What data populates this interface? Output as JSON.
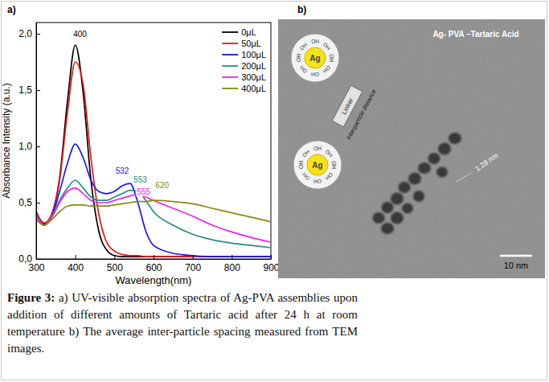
{
  "chart_data": {
    "type": "line",
    "xlabel": "Wavelength(nm)",
    "ylabel": "Absorbance Intensity (a.u.)",
    "x": [
      300,
      320,
      340,
      360,
      380,
      400,
      420,
      440,
      460,
      480,
      500,
      520,
      540,
      560,
      580,
      600,
      650,
      700,
      750,
      800,
      850,
      900
    ],
    "xlim": [
      300,
      900
    ],
    "xticks": [
      300,
      400,
      500,
      600,
      700,
      800,
      900
    ],
    "ylim": [
      0,
      2.1
    ],
    "yticks": [
      {
        "value": 0,
        "label": "0,0"
      },
      {
        "value": 0.5,
        "label": "0,5"
      },
      {
        "value": 1,
        "label": "1,0"
      },
      {
        "value": 1.5,
        "label": "1,5"
      },
      {
        "value": 2,
        "label": "2,0"
      }
    ],
    "grid": false,
    "legend": "upper right",
    "series": [
      {
        "name": "0μL",
        "color": "#000000",
        "values": [
          0.42,
          0.31,
          0.4,
          0.72,
          1.4,
          1.9,
          1.48,
          0.7,
          0.25,
          0.08,
          0.03,
          0.02,
          0.02,
          0.02,
          0.02,
          0.02,
          0.02,
          0.02,
          0.02,
          0.02,
          0.02,
          0.02
        ]
      },
      {
        "name": "50μL",
        "color": "#e8161b",
        "values": [
          0.42,
          0.32,
          0.4,
          0.7,
          1.3,
          1.75,
          1.55,
          0.9,
          0.4,
          0.15,
          0.07,
          0.04,
          0.03,
          0.03,
          0.02,
          0.02,
          0.02,
          0.02,
          0.02,
          0.02,
          0.02,
          0.02
        ]
      },
      {
        "name": "100μL",
        "color": "#1a1ae6",
        "values": [
          0.4,
          0.3,
          0.38,
          0.6,
          0.85,
          1.02,
          0.9,
          0.7,
          0.6,
          0.58,
          0.6,
          0.65,
          0.67,
          0.5,
          0.25,
          0.12,
          0.05,
          0.03,
          0.02,
          0.02,
          0.02,
          0.02
        ]
      },
      {
        "name": "200μL",
        "color": "#2a8c84",
        "values": [
          0.4,
          0.3,
          0.38,
          0.52,
          0.63,
          0.7,
          0.63,
          0.55,
          0.52,
          0.52,
          0.55,
          0.58,
          0.61,
          0.6,
          0.52,
          0.42,
          0.3,
          0.22,
          0.17,
          0.14,
          0.12,
          0.1
        ]
      },
      {
        "name": "300μL",
        "color": "#ee22ee",
        "values": [
          0.38,
          0.3,
          0.37,
          0.5,
          0.6,
          0.63,
          0.58,
          0.52,
          0.5,
          0.5,
          0.52,
          0.54,
          0.56,
          0.57,
          0.55,
          0.52,
          0.45,
          0.38,
          0.3,
          0.24,
          0.19,
          0.15
        ]
      },
      {
        "name": "400μL",
        "color": "#8a8a10",
        "values": [
          0.35,
          0.3,
          0.35,
          0.42,
          0.47,
          0.48,
          0.48,
          0.47,
          0.47,
          0.47,
          0.48,
          0.49,
          0.5,
          0.51,
          0.51,
          0.52,
          0.51,
          0.49,
          0.45,
          0.41,
          0.37,
          0.33
        ]
      }
    ],
    "annotations": [
      {
        "text": "400",
        "x": 412,
        "y": 1.97,
        "color": "#000000"
      },
      {
        "text": "532",
        "x": 520,
        "y": 0.76,
        "color": "#1a1ae6"
      },
      {
        "text": "553",
        "x": 566,
        "y": 0.68,
        "color": "#2a8c84"
      },
      {
        "text": "555",
        "x": 575,
        "y": 0.57,
        "color": "#ee22ee"
      },
      {
        "text": "620",
        "x": 622,
        "y": 0.63,
        "color": "#8a8a10"
      }
    ]
  },
  "panel_labels": [
    "a)",
    "b)"
  ],
  "tem_image": {
    "title": "Ag- PVA –Tartaric Acid",
    "particle_label": "Ag",
    "group_label": "OH",
    "linker_label": "Linker",
    "distance_label": "Interparticle distance",
    "spacing_label": "1.28 nm",
    "scale_bar_label": "10 nm"
  },
  "caption": {
    "label": "Figure 3:",
    "text": "a) UV-visible absorption spectra of Ag-PVA assemblies upon addition of different amounts of Tartaric acid after 24 h at room temperature b) The average inter-particle spacing measured from TEM images."
  }
}
